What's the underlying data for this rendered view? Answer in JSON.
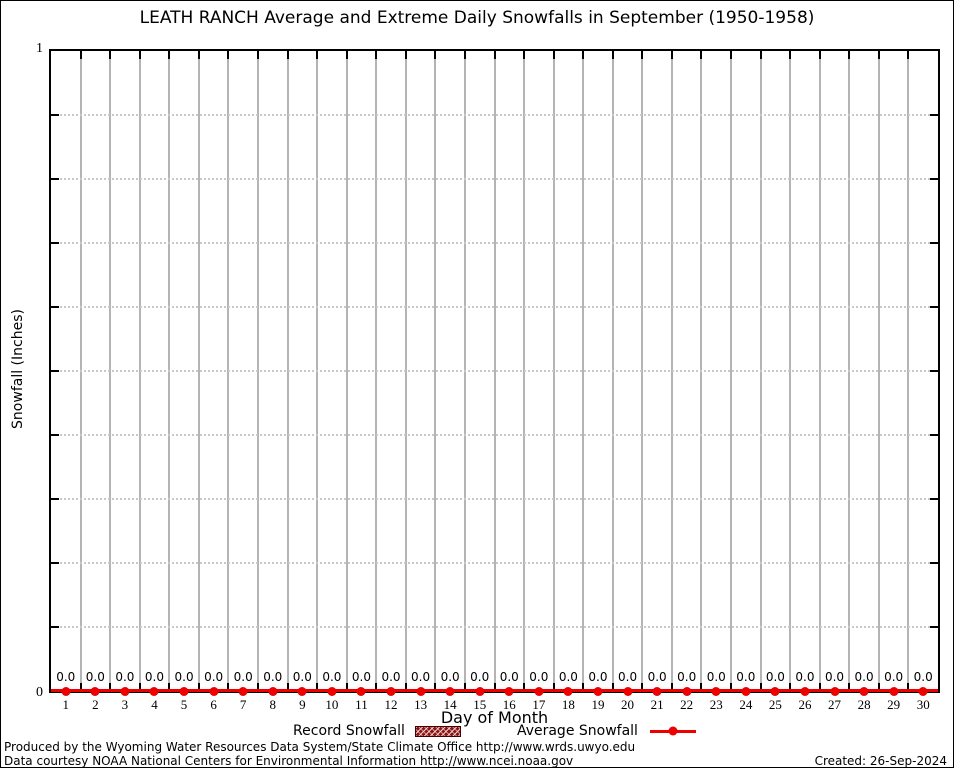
{
  "title": "LEATH RANCH Average and Extreme Daily Snowfalls in September (1950-1958)",
  "chart_data": {
    "type": "line",
    "title": "LEATH RANCH Average and Extreme Daily Snowfalls in September (1950-1958)",
    "xlabel": "Day of Month",
    "ylabel": "Snowfall (Inches)",
    "xlim": [
      0.5,
      30.5
    ],
    "ylim": [
      0,
      1
    ],
    "ytick_labels": [
      "0",
      "1"
    ],
    "ygrid_step": 0.1,
    "grid": true,
    "legend_position": "bottom",
    "categories": [
      1,
      2,
      3,
      4,
      5,
      6,
      7,
      8,
      9,
      10,
      11,
      12,
      13,
      14,
      15,
      16,
      17,
      18,
      19,
      20,
      21,
      22,
      23,
      24,
      25,
      26,
      27,
      28,
      29,
      30
    ],
    "series": [
      {
        "name": "Record Snowfall",
        "style": "hatched-box",
        "color": "#8b1414",
        "values": [
          0,
          0,
          0,
          0,
          0,
          0,
          0,
          0,
          0,
          0,
          0,
          0,
          0,
          0,
          0,
          0,
          0,
          0,
          0,
          0,
          0,
          0,
          0,
          0,
          0,
          0,
          0,
          0,
          0,
          0
        ]
      },
      {
        "name": "Average Snowfall",
        "style": "line-with-points",
        "color": "#ee0000",
        "values": [
          0,
          0,
          0,
          0,
          0,
          0,
          0,
          0,
          0,
          0,
          0,
          0,
          0,
          0,
          0,
          0,
          0,
          0,
          0,
          0,
          0,
          0,
          0,
          0,
          0,
          0,
          0,
          0,
          0,
          0
        ]
      }
    ],
    "value_labels": [
      "0.0",
      "0.0",
      "0.0",
      "0.0",
      "0.0",
      "0.0",
      "0.0",
      "0.0",
      "0.0",
      "0.0",
      "0.0",
      "0.0",
      "0.0",
      "0.0",
      "0.0",
      "0.0",
      "0.0",
      "0.0",
      "0.0",
      "0.0",
      "0.0",
      "0.0",
      "0.0",
      "0.0",
      "0.0",
      "0.0",
      "0.0",
      "0.0",
      "0.0",
      "0.0"
    ]
  },
  "footer": {
    "line1": "Produced by the Wyoming Water Resources Data System/State Climate Office http://www.wrds.uwyo.edu",
    "line2": "Data courtesy NOAA National Centers for Environmental Information http://www.ncei.noaa.gov",
    "created": "Created: 26-Sep-2024"
  },
  "colors": {
    "series_red": "#ee0000",
    "record_fill": "#8b1414",
    "grid_vertical": "#b4b4b4",
    "grid_dotted": "#c9c9c9",
    "axis": "#000000"
  }
}
